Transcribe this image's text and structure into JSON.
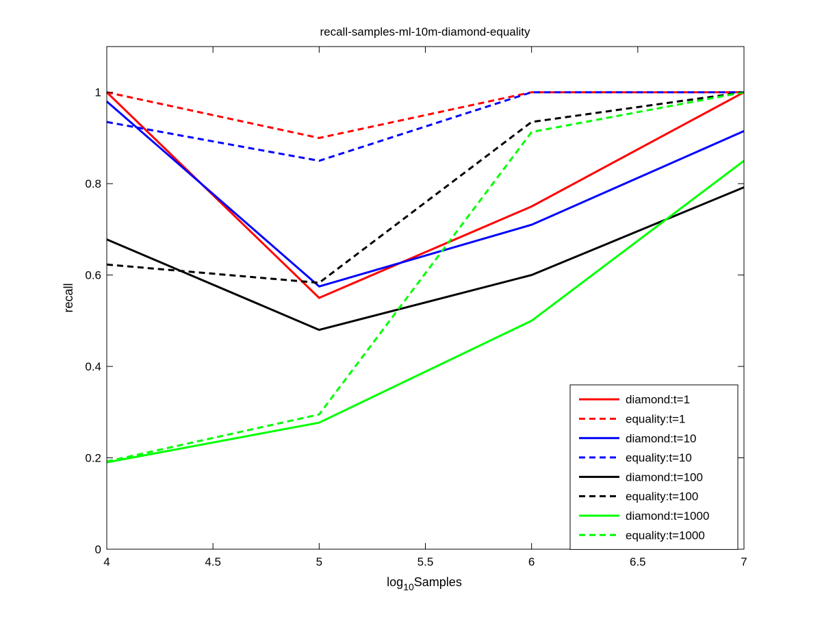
{
  "chart_data": {
    "type": "line",
    "title": "recall-samples-ml-10m-diamond-equality",
    "xlabel": {
      "prefix": "log",
      "subscript": "10",
      "suffix": "Samples"
    },
    "ylabel": "recall",
    "xlim": [
      4,
      7
    ],
    "ylim": [
      0,
      1.1
    ],
    "xticks": [
      "4",
      "4.5",
      "5",
      "5.5",
      "6",
      "6.5",
      "7"
    ],
    "yticks": [
      "0",
      "0.2",
      "0.4",
      "0.6",
      "0.8",
      "1"
    ],
    "x": [
      4,
      5,
      6,
      7
    ],
    "grid": false,
    "legend_position": "bottom-right",
    "series": [
      {
        "name": "diamond:t=1",
        "color": "#ff0000",
        "style": "solid",
        "values": [
          1.0,
          0.55,
          0.75,
          1.0
        ]
      },
      {
        "name": "equality:t=1",
        "color": "#ff0000",
        "style": "dashed",
        "values": [
          1.0,
          0.9,
          1.0,
          1.0
        ]
      },
      {
        "name": "diamond:t=10",
        "color": "#0000ff",
        "style": "solid",
        "values": [
          0.98,
          0.575,
          0.71,
          0.915
        ]
      },
      {
        "name": "equality:t=10",
        "color": "#0000ff",
        "style": "dashed",
        "values": [
          0.935,
          0.85,
          1.0,
          1.0
        ]
      },
      {
        "name": "diamond:t=100",
        "color": "#000000",
        "style": "solid",
        "values": [
          0.678,
          0.48,
          0.6,
          0.792
        ]
      },
      {
        "name": "equality:t=100",
        "color": "#000000",
        "style": "dashed",
        "values": [
          0.623,
          0.583,
          0.935,
          1.0
        ]
      },
      {
        "name": "diamond:t=1000",
        "color": "#00ff00",
        "style": "solid",
        "values": [
          0.19,
          0.277,
          0.5,
          0.85
        ]
      },
      {
        "name": "equality:t=1000",
        "color": "#00ff00",
        "style": "dashed",
        "values": [
          0.192,
          0.295,
          0.913,
          1.0
        ]
      }
    ]
  }
}
